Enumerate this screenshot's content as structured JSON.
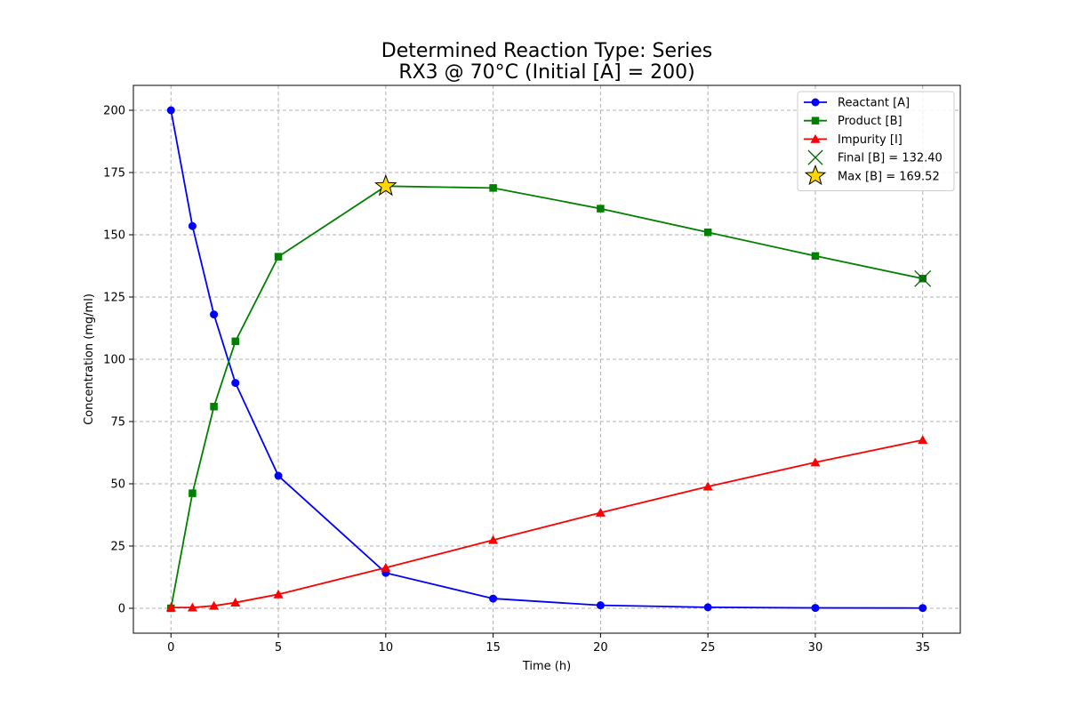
{
  "chart_data": {
    "type": "line",
    "title": "Determined Reaction Type: Series",
    "subtitle": "RX3 @ 70°C (Initial [A] = 200)",
    "xlabel": "Time (h)",
    "ylabel": "Concentration (mg/ml)",
    "xlim": [
      -1.75,
      36.75
    ],
    "ylim": [
      -10,
      210
    ],
    "xticks": [
      0,
      5,
      10,
      15,
      20,
      25,
      30,
      35
    ],
    "yticks": [
      0,
      25,
      50,
      75,
      100,
      125,
      150,
      175,
      200
    ],
    "grid": true,
    "legend_position": "top-right",
    "x": [
      0,
      1,
      2,
      3,
      5,
      10,
      15,
      20,
      25,
      30,
      35
    ],
    "series": [
      {
        "name": "Reactant [A]",
        "color": "#0000ff",
        "marker": "circle",
        "values": [
          200,
          153.5,
          118,
          90.5,
          53.2,
          14.2,
          3.9,
          1.2,
          0.4,
          0.15,
          0.1
        ]
      },
      {
        "name": "Product [B]",
        "color": "#008000",
        "marker": "square",
        "values": [
          0,
          46.2,
          81.0,
          107.2,
          141.2,
          169.52,
          168.8,
          160.5,
          151.0,
          141.5,
          132.4
        ]
      },
      {
        "name": "Impurity [I]",
        "color": "#ff0000",
        "marker": "triangle",
        "values": [
          0.3,
          0.3,
          1.0,
          2.3,
          5.6,
          16.3,
          27.4,
          38.4,
          48.9,
          58.6,
          67.6
        ]
      }
    ],
    "annotations": [
      {
        "label": "Final [B] = 132.40",
        "x": 35,
        "y": 132.4,
        "marker": "x",
        "color": "#006400"
      },
      {
        "label": "Max [B] = 169.52",
        "x": 10,
        "y": 169.52,
        "marker": "star",
        "color": "#ffd700"
      }
    ]
  }
}
